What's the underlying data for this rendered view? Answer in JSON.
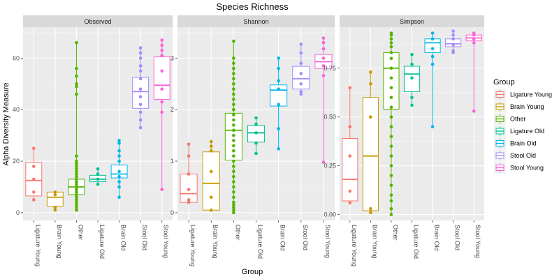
{
  "chart_data": {
    "type": "box",
    "title": "Species Richness",
    "xlabel": "Group",
    "ylabel": "Alpha Diversity Measure",
    "legend": {
      "title": "Group",
      "placement": "right",
      "entries": [
        {
          "name": "Ligature Young",
          "color": "#F8766D"
        },
        {
          "name": "Brain Young",
          "color": "#C49A00"
        },
        {
          "name": "Other",
          "color": "#53B400"
        },
        {
          "name": "Ligature Old",
          "color": "#00C094"
        },
        {
          "name": "Brain Old",
          "color": "#00B6EB"
        },
        {
          "name": "Stool Old",
          "color": "#A58AFF"
        },
        {
          "name": "Stool Young",
          "color": "#FB61D7"
        }
      ]
    },
    "categories": [
      "Ligature Young",
      "Brain Young",
      "Other",
      "Ligature Old",
      "Brain Old",
      "Stool Old",
      "Stool Young"
    ],
    "panels": [
      {
        "name": "Observed",
        "ylim": [
          -3,
          72
        ],
        "yticks": [
          0,
          20,
          40,
          60
        ],
        "boxes": [
          {
            "group": "Ligature Young",
            "min": 5,
            "q1": 6.5,
            "median": 12.5,
            "q3": 19.5,
            "max": 25,
            "points": [
              5,
              25,
              13,
              8,
              18
            ]
          },
          {
            "group": "Brain Young",
            "min": 1,
            "q1": 2.5,
            "median": 6,
            "q3": 8,
            "max": 8,
            "points": [
              1,
              2,
              7,
              8
            ]
          },
          {
            "group": "Other",
            "min": 1,
            "q1": 7,
            "median": 10,
            "q3": 13,
            "max": 66,
            "points": [
              1,
              2,
              3,
              4,
              5,
              6,
              7,
              8,
              9,
              10,
              11,
              12,
              13,
              14,
              15,
              16,
              17,
              18,
              19,
              20,
              22,
              46,
              49,
              50,
              53,
              56,
              66
            ]
          },
          {
            "group": "Ligature Old",
            "min": 11,
            "q1": 12,
            "median": 13,
            "q3": 14.5,
            "max": 17,
            "points": [
              11,
              13,
              15,
              17
            ]
          },
          {
            "group": "Brain Old",
            "min": 6,
            "q1": 13.5,
            "median": 15,
            "q3": 18.5,
            "max": 28,
            "points": [
              6,
              10,
              12,
              14,
              16,
              20,
              22,
              24,
              27,
              28
            ]
          },
          {
            "group": "Stool Old",
            "min": 33,
            "q1": 40.5,
            "median": 47,
            "q3": 52.5,
            "max": 64,
            "points": [
              33,
              36,
              39,
              42,
              45,
              48,
              52,
              55,
              57,
              60,
              62,
              64
            ]
          },
          {
            "group": "Stool Young",
            "min": 9,
            "q1": 44,
            "median": 49.5,
            "q3": 60.5,
            "max": 67,
            "points": [
              9,
              39,
              43,
              48,
              55,
              61,
              63,
              65,
              67
            ]
          }
        ]
      },
      {
        "name": "Shannon",
        "ylim": [
          -0.15,
          3.6
        ],
        "yticks": [
          0,
          1,
          2,
          3
        ],
        "boxes": [
          {
            "group": "Ligature Young",
            "min": 0.2,
            "q1": 0.2,
            "median": 0.37,
            "q3": 0.75,
            "max": 1.33,
            "points": [
              0.2,
              0.25,
              0.45,
              0.75,
              1.1,
              1.33
            ]
          },
          {
            "group": "Brain Young",
            "min": 0.05,
            "q1": 0.05,
            "median": 0.57,
            "q3": 1.18,
            "max": 1.38,
            "points": [
              0.05,
              0.3,
              0.8,
              1.2,
              1.29,
              1.38
            ]
          },
          {
            "group": "Other",
            "min": 0.0,
            "q1": 1.02,
            "median": 1.6,
            "q3": 1.93,
            "max": 3.33,
            "points": [
              0,
              0.05,
              0.1,
              0.15,
              0.2,
              0.3,
              0.4,
              0.5,
              0.6,
              0.7,
              0.8,
              0.9,
              1.0,
              1.1,
              1.2,
              1.3,
              1.4,
              1.5,
              1.6,
              1.7,
              1.8,
              1.9,
              2.0,
              2.1,
              2.2,
              2.3,
              2.4,
              2.5,
              2.6,
              2.7,
              2.8,
              2.9,
              3.0,
              3.33
            ]
          },
          {
            "group": "Ligature Old",
            "min": 1.15,
            "q1": 1.37,
            "median": 1.55,
            "q3": 1.69,
            "max": 1.84,
            "points": [
              1.15,
              1.35,
              1.55,
              1.72,
              1.84
            ]
          },
          {
            "group": "Brain Old",
            "min": 1.24,
            "q1": 2.07,
            "median": 2.38,
            "q3": 2.48,
            "max": 3.0,
            "points": [
              1.24,
              1.63,
              2.1,
              2.4,
              2.56,
              2.8,
              3.0
            ]
          },
          {
            "group": "Stool Old",
            "min": 2.3,
            "q1": 2.4,
            "median": 2.6,
            "q3": 2.84,
            "max": 3.27,
            "points": [
              2.3,
              2.35,
              2.5,
              2.7,
              2.9,
              3.1,
              3.27
            ]
          },
          {
            "group": "Stool Young",
            "min": 0.98,
            "q1": 2.8,
            "median": 2.93,
            "q3": 3.07,
            "max": 3.39,
            "points": [
              0.98,
              2.66,
              2.85,
              3.0,
              3.18,
              3.3,
              3.39
            ]
          }
        ]
      },
      {
        "name": "Simpson",
        "ylim": [
          -0.03,
          0.96
        ],
        "yticks": [
          0.0,
          0.25,
          0.5,
          0.75
        ],
        "ytick_labels": [
          "0.00",
          "0.25",
          "0.50",
          "0.75"
        ],
        "boxes": [
          {
            "group": "Ligature Young",
            "min": 0.06,
            "q1": 0.07,
            "median": 0.18,
            "q3": 0.39,
            "max": 0.65,
            "points": [
              0.06,
              0.12,
              0.3,
              0.45,
              0.65
            ]
          },
          {
            "group": "Brain Young",
            "min": 0.01,
            "q1": 0.02,
            "median": 0.3,
            "q3": 0.6,
            "max": 0.73,
            "points": [
              0.01,
              0.03,
              0.5,
              0.67,
              0.73
            ]
          },
          {
            "group": "Other",
            "min": 0.0,
            "q1": 0.54,
            "median": 0.75,
            "q3": 0.83,
            "max": 0.93,
            "points": [
              0,
              0.03,
              0.07,
              0.1,
              0.15,
              0.2,
              0.25,
              0.3,
              0.35,
              0.4,
              0.45,
              0.5,
              0.55,
              0.6,
              0.65,
              0.7,
              0.75,
              0.8,
              0.83,
              0.86,
              0.88,
              0.9,
              0.92,
              0.93
            ]
          },
          {
            "group": "Ligature Old",
            "min": 0.56,
            "q1": 0.63,
            "median": 0.72,
            "q3": 0.76,
            "max": 0.82,
            "points": [
              0.56,
              0.6,
              0.7,
              0.77,
              0.82
            ]
          },
          {
            "group": "Brain Old",
            "min": 0.45,
            "q1": 0.83,
            "median": 0.88,
            "q3": 0.9,
            "max": 0.93,
            "points": [
              0.45,
              0.77,
              0.81,
              0.85,
              0.9,
              0.93
            ]
          },
          {
            "group": "Stool Old",
            "min": 0.83,
            "q1": 0.86,
            "median": 0.875,
            "q3": 0.9,
            "max": 0.94,
            "points": [
              0.83,
              0.84,
              0.87,
              0.9,
              0.92,
              0.94
            ]
          },
          {
            "group": "Stool Young",
            "min": 0.53,
            "q1": 0.89,
            "median": 0.905,
            "q3": 0.92,
            "max": 0.93,
            "points": [
              0.53,
              0.88,
              0.9,
              0.92,
              0.93
            ]
          }
        ]
      }
    ]
  }
}
